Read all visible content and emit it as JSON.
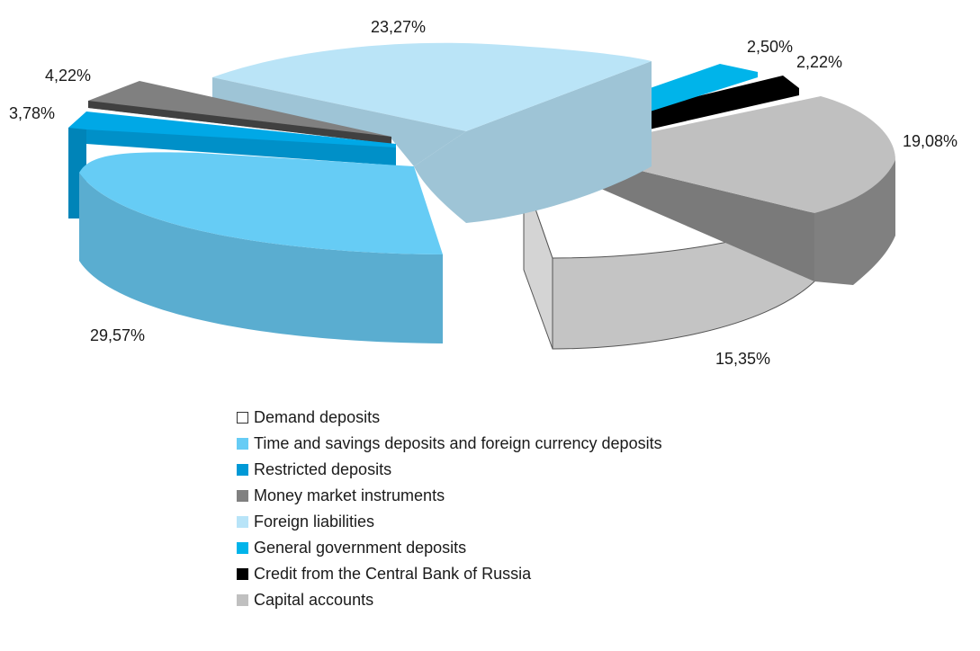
{
  "chart_data": {
    "type": "pie",
    "title": "",
    "categories": [
      "Demand deposits",
      "Time and savings deposits and foreign currency deposits",
      "Restricted deposits",
      "Money market instruments",
      "Foreign liabilities",
      "General government deposits",
      "Credit from the Central Bank of Russia",
      "Capital accounts"
    ],
    "values": [
      15.35,
      29.57,
      3.78,
      4.22,
      23.27,
      2.5,
      2.22,
      19.08
    ],
    "value_labels": [
      "15,35%",
      "29,57%",
      "3,78%",
      "4,22%",
      "23,27%",
      "2,50%",
      "2,22%",
      "19,08%"
    ],
    "colors": [
      "#ffffff",
      "#66ccf5",
      "#0099d6",
      "#808080",
      "#b8e4f8",
      "#00b4ea",
      "#000000",
      "#c0c0c0"
    ],
    "style": "3d-exploded",
    "legend_position": "bottom"
  }
}
